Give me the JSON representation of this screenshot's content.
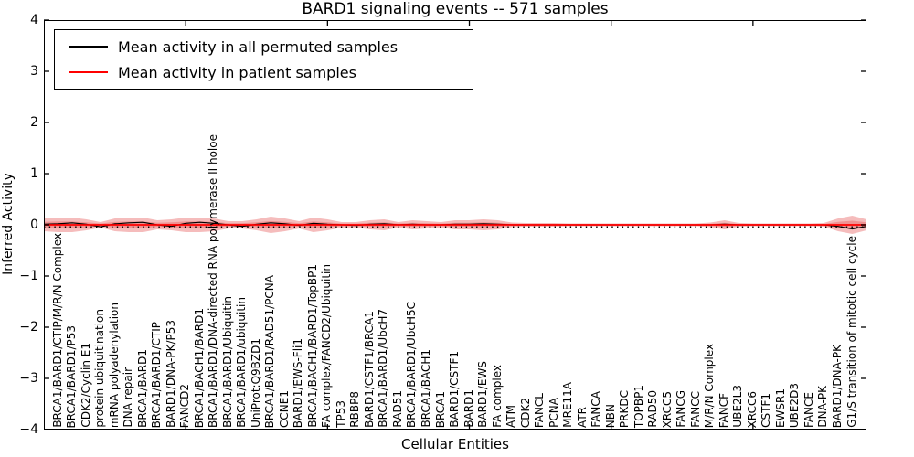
{
  "chart_data": {
    "type": "line",
    "title": "BARD1 signaling events -- 571 samples",
    "xlabel": "Cellular Entities",
    "ylabel": "Inferred Activity",
    "ylim": [
      -4,
      4
    ],
    "yticks": [
      4,
      3,
      2,
      1,
      0,
      -1,
      -2,
      -3,
      -4
    ],
    "grid": false,
    "legend": {
      "position": "upper left",
      "entries": [
        {
          "label": "Mean activity in all permuted samples",
          "color": "#000000"
        },
        {
          "label": "Mean activity in patient samples",
          "color": "#ff0000"
        }
      ]
    },
    "categories": [
      "BRCA1/BARD1/CTIP/M/R/N Complex",
      "BRCA1/BARD1/P53",
      "CDK2/Cyclin E1",
      "protein ubiquitination",
      "mRNA polyadenylation",
      "DNA repair",
      "BRCA1/BARD1",
      "BRCA1/BARD1/CTIP",
      "BARD1/DNA-PK/P53",
      "FANCD2",
      "BRCA1/BACH1/BARD1",
      "BRCA1/BARD1/DNA-directed RNA polymerase II holoe",
      "BRCA1/BARD1/Ubiquitin",
      "BRCA1/BARD1/ubiquitin",
      "UniProt:Q9BZD1",
      "BRCA1/BARD1/RAD51/PCNA",
      "CCNE1",
      "BARD1/EWS-Fli1",
      "BRCA1/BACH1/BARD1/TopBP1",
      "FA complex/FANCD2/Ubiquitin",
      "TP53",
      "RBBP8",
      "BARD1/CSTF1/BRCA1",
      "BRCA1/BARD1/UbcH7",
      "RAD51",
      "BRCA1/BARD1/UbcH5C",
      "BRCA1/BACH1",
      "BRCA1",
      "BARD1/CSTF1",
      "BARD1",
      "BARD1/EWS",
      "FA complex",
      "ATM",
      "CDK2",
      "FANCL",
      "PCNA",
      "MRE11A",
      "ATR",
      "FANCA",
      "NBN",
      "PRKDC",
      "TOPBP1",
      "RAD50",
      "XRCC5",
      "FANCG",
      "FANCC",
      "M/R/N Complex",
      "FANCF",
      "UBE2L3",
      "XRCC6",
      "CSTF1",
      "EWSR1",
      "UBE2D3",
      "FANCE",
      "DNA-PK",
      "BARD1/DNA-PK",
      "G1/S transition of mitotic cell cycle"
    ],
    "series": [
      {
        "name": "Mean activity in all permuted samples",
        "color": "#000000",
        "edge_left": 0.01,
        "edge_right": -0.03,
        "values": [
          0.02,
          0.04,
          0.01,
          -0.04,
          0.02,
          0.04,
          0.05,
          0.0,
          -0.03,
          0.03,
          0.05,
          0.03,
          0.0,
          -0.03,
          0.01,
          0.04,
          0.02,
          -0.01,
          0.03,
          0.01,
          0.0,
          -0.01,
          0.01,
          0.02,
          0.0,
          0.01,
          0.0,
          0.0,
          0.01,
          0.01,
          0.02,
          0.01,
          0.0,
          0.0,
          0.0,
          0.0,
          0.0,
          0.0,
          0.0,
          0.0,
          0.0,
          0.0,
          0.0,
          0.0,
          0.0,
          0.0,
          0.0,
          0.01,
          0.0,
          0.0,
          0.0,
          0.0,
          0.0,
          0.0,
          0.0,
          -0.03,
          -0.08
        ]
      },
      {
        "name": "Mean activity in patient samples",
        "color": "#ff0000",
        "constant_value": 0.0
      }
    ],
    "band": {
      "name": "patient activity spread (red shaded band)",
      "color": "#e85f5f",
      "center": 0.0,
      "edge_left": 0.125,
      "edge_right": 0.107,
      "half_widths": [
        0.143,
        0.143,
        0.107,
        0.054,
        0.125,
        0.143,
        0.143,
        0.089,
        0.107,
        0.143,
        0.143,
        0.125,
        0.071,
        0.071,
        0.107,
        0.161,
        0.125,
        0.071,
        0.143,
        0.107,
        0.054,
        0.054,
        0.089,
        0.107,
        0.054,
        0.089,
        0.071,
        0.054,
        0.089,
        0.089,
        0.107,
        0.089,
        0.045,
        0.036,
        0.036,
        0.036,
        0.027,
        0.027,
        0.027,
        0.027,
        0.027,
        0.027,
        0.027,
        0.027,
        0.027,
        0.027,
        0.045,
        0.089,
        0.036,
        0.027,
        0.027,
        0.027,
        0.027,
        0.027,
        0.036,
        0.125,
        0.179
      ]
    },
    "reference_line": {
      "style": "dotted",
      "color": "#000000",
      "value": -0.04
    }
  }
}
